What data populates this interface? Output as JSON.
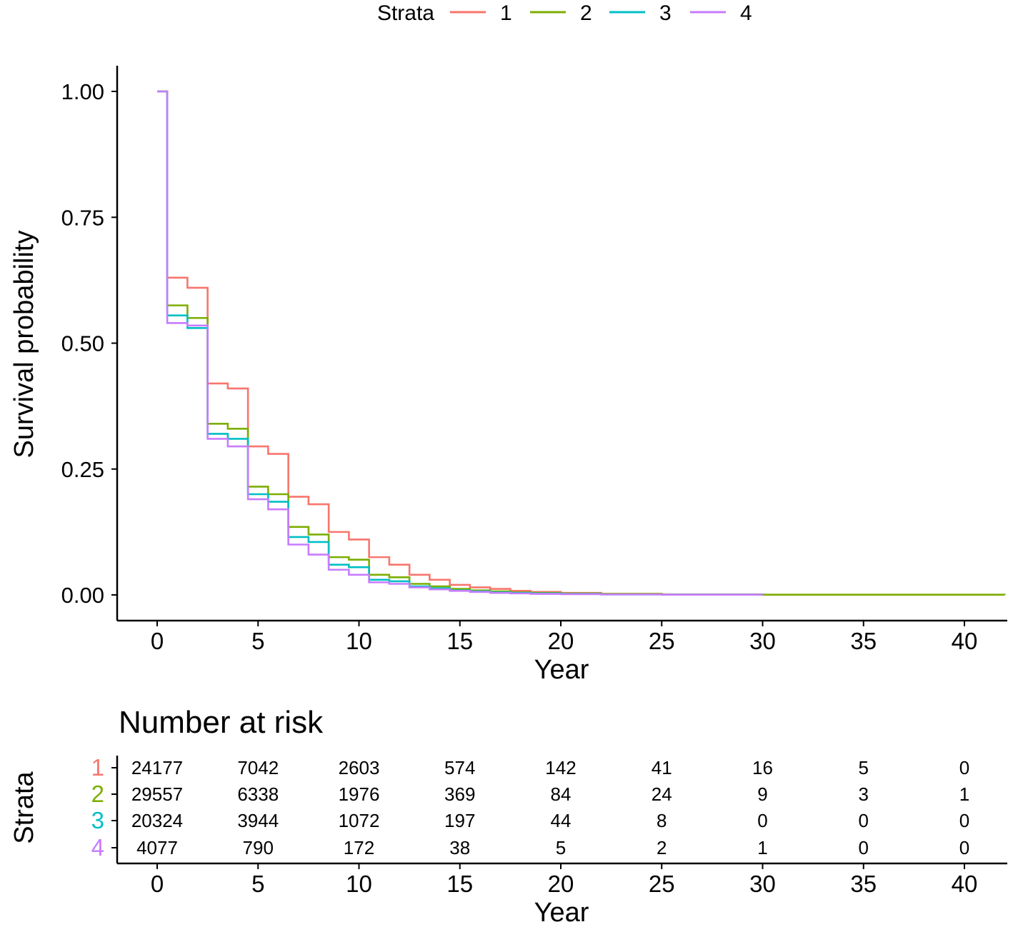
{
  "chart_data": [
    {
      "type": "line",
      "subtype": "kaplan-meier step",
      "title": "",
      "xlabel": "Year",
      "ylabel": "Survival probability",
      "xlim": [
        0,
        42
      ],
      "ylim": [
        0,
        1.0
      ],
      "xticks": [
        "0",
        "5",
        "10",
        "15",
        "20",
        "25",
        "30",
        "35",
        "40"
      ],
      "yticks": [
        "0.00",
        "0.25",
        "0.50",
        "0.75",
        "1.00"
      ],
      "legend": {
        "title": "Strata",
        "placement": "top",
        "entries": [
          "1",
          "2",
          "3",
          "4"
        ]
      },
      "colors": [
        "#F8766D",
        "#7CAE00",
        "#00BFC4",
        "#C77CFF"
      ],
      "series": [
        {
          "name": "1",
          "color": "#F8766D",
          "x": [
            0,
            0.5,
            1.5,
            2.5,
            3.5,
            4.5,
            5.5,
            6.5,
            7.5,
            8.5,
            9.5,
            10.5,
            11.5,
            12.5,
            13.5,
            14.5,
            15.5,
            16.5,
            17.5,
            18.5,
            20,
            22,
            25,
            30,
            42
          ],
          "y": [
            1.0,
            0.63,
            0.61,
            0.42,
            0.41,
            0.295,
            0.28,
            0.195,
            0.18,
            0.125,
            0.11,
            0.075,
            0.06,
            0.04,
            0.03,
            0.02,
            0.015,
            0.012,
            0.008,
            0.006,
            0.004,
            0.002,
            0.001,
            0.0003,
            0.0003
          ]
        },
        {
          "name": "2",
          "color": "#7CAE00",
          "x": [
            0,
            0.5,
            1.5,
            2.5,
            3.5,
            4.5,
            5.5,
            6.5,
            7.5,
            8.5,
            9.5,
            10.5,
            11.5,
            12.5,
            13.5,
            14.5,
            15.5,
            16.5,
            17.5,
            18.5,
            20,
            22,
            25,
            30,
            42
          ],
          "y": [
            1.0,
            0.575,
            0.55,
            0.34,
            0.33,
            0.215,
            0.2,
            0.135,
            0.12,
            0.075,
            0.07,
            0.04,
            0.035,
            0.022,
            0.017,
            0.012,
            0.009,
            0.007,
            0.005,
            0.004,
            0.003,
            0.002,
            0.001,
            0.0004,
            0.0003
          ]
        },
        {
          "name": "3",
          "color": "#00BFC4",
          "x": [
            0,
            0.5,
            1.5,
            2.5,
            3.5,
            4.5,
            5.5,
            6.5,
            7.5,
            8.5,
            9.5,
            10.5,
            11.5,
            12.5,
            13.5,
            14.5,
            15.5,
            16.5,
            17.5,
            18.5,
            20,
            22,
            25,
            30
          ],
          "y": [
            1.0,
            0.555,
            0.53,
            0.32,
            0.31,
            0.2,
            0.185,
            0.115,
            0.105,
            0.06,
            0.055,
            0.03,
            0.027,
            0.017,
            0.013,
            0.009,
            0.007,
            0.005,
            0.004,
            0.003,
            0.002,
            0.001,
            0.0005,
            0.0003
          ]
        },
        {
          "name": "4",
          "color": "#C77CFF",
          "x": [
            0,
            0.5,
            1.5,
            2.5,
            3.5,
            4.5,
            5.5,
            6.5,
            7.5,
            8.5,
            9.5,
            10.5,
            11.5,
            12.5,
            13.5,
            14.5,
            15.5,
            16.5,
            17.5,
            18.5,
            20,
            22,
            25,
            30
          ],
          "y": [
            1.0,
            0.54,
            0.535,
            0.31,
            0.295,
            0.19,
            0.17,
            0.1,
            0.08,
            0.05,
            0.04,
            0.025,
            0.022,
            0.015,
            0.011,
            0.008,
            0.006,
            0.004,
            0.003,
            0.002,
            0.0015,
            0.001,
            0.0005,
            0.0003
          ]
        }
      ]
    },
    {
      "type": "table",
      "title": "Number at risk",
      "xlabel": "Year",
      "ylabel": "Strata",
      "xlim": [
        0,
        42
      ],
      "xticks": [
        "0",
        "5",
        "10",
        "15",
        "20",
        "25",
        "30",
        "35",
        "40"
      ],
      "x": [
        0,
        5,
        10,
        15,
        20,
        25,
        30,
        35,
        40
      ],
      "rows": [
        {
          "stratum": "1",
          "color": "#F8766D",
          "values": [
            "24177",
            "7042",
            "2603",
            "574",
            "142",
            "41",
            "16",
            "5",
            "0"
          ]
        },
        {
          "stratum": "2",
          "color": "#7CAE00",
          "values": [
            "29557",
            "6338",
            "1976",
            "369",
            "84",
            "24",
            "9",
            "3",
            "1"
          ]
        },
        {
          "stratum": "3",
          "color": "#00BFC4",
          "values": [
            "20324",
            "3944",
            "1072",
            "197",
            "44",
            "8",
            "0",
            "0",
            "0"
          ]
        },
        {
          "stratum": "4",
          "color": "#C77CFF",
          "values": [
            "4077",
            "790",
            "172",
            "38",
            "5",
            "2",
            "1",
            "0",
            "0"
          ]
        }
      ]
    }
  ]
}
